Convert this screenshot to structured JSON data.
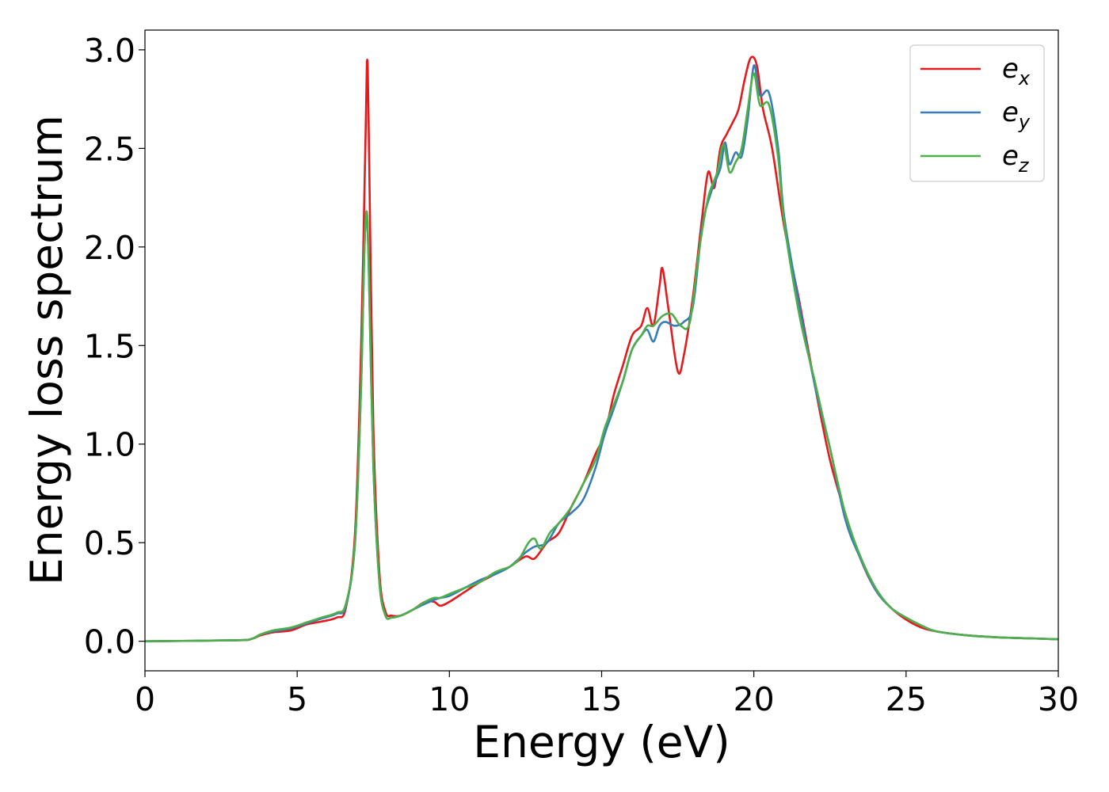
{
  "chart_data": {
    "type": "line",
    "xlabel": "Energy (eV)",
    "ylabel": "Energy loss spectrum",
    "xlim": [
      0,
      30
    ],
    "ylim": [
      -0.15,
      3.1
    ],
    "xticks": [
      "0",
      "5",
      "10",
      "15",
      "20",
      "25",
      "30"
    ],
    "yticks": [
      "0.0",
      "0.5",
      "1.0",
      "1.5",
      "2.0",
      "2.5",
      "3.0"
    ],
    "grid": false,
    "legend_position": "top-right",
    "series": [
      {
        "name": "e_x",
        "legend_base": "e",
        "legend_sub": "x",
        "color": "#e41a1c",
        "x": [
          0,
          3.0,
          3.5,
          3.8,
          4.2,
          4.8,
          5.3,
          5.8,
          6.3,
          6.6,
          6.9,
          7.1,
          7.25,
          7.3,
          7.35,
          7.5,
          7.7,
          7.9,
          8.1,
          8.4,
          8.8,
          9.2,
          9.5,
          9.7,
          10.0,
          10.5,
          11.0,
          11.5,
          12.0,
          12.5,
          12.8,
          13.2,
          13.6,
          14.0,
          14.4,
          14.8,
          15.1,
          15.4,
          15.7,
          16.0,
          16.3,
          16.5,
          16.7,
          16.9,
          17.0,
          17.2,
          17.5,
          17.7,
          18.0,
          18.3,
          18.5,
          18.7,
          18.9,
          19.1,
          19.3,
          19.5,
          19.7,
          19.9,
          20.1,
          20.3,
          20.6,
          21.0,
          21.5,
          22.0,
          22.5,
          23.0,
          23.5,
          24.0,
          24.5,
          25.0,
          25.5,
          26.0,
          27.0,
          28.0,
          29.0,
          30.0
        ],
        "y": [
          0.0,
          0.005,
          0.012,
          0.03,
          0.045,
          0.055,
          0.085,
          0.1,
          0.12,
          0.17,
          0.55,
          1.5,
          2.6,
          2.95,
          2.6,
          1.1,
          0.35,
          0.15,
          0.13,
          0.13,
          0.16,
          0.2,
          0.2,
          0.18,
          0.2,
          0.25,
          0.3,
          0.34,
          0.38,
          0.43,
          0.42,
          0.5,
          0.55,
          0.68,
          0.8,
          0.95,
          1.05,
          1.25,
          1.4,
          1.55,
          1.6,
          1.69,
          1.6,
          1.8,
          1.89,
          1.68,
          1.37,
          1.45,
          1.75,
          2.15,
          2.38,
          2.3,
          2.5,
          2.57,
          2.63,
          2.7,
          2.85,
          2.96,
          2.92,
          2.7,
          2.5,
          2.1,
          1.72,
          1.3,
          0.92,
          0.65,
          0.42,
          0.26,
          0.17,
          0.11,
          0.07,
          0.05,
          0.03,
          0.02,
          0.015,
          0.01
        ]
      },
      {
        "name": "e_y",
        "legend_base": "e",
        "legend_sub": "y",
        "color": "#377eb8",
        "x": [
          0,
          3.0,
          3.5,
          3.8,
          4.2,
          4.8,
          5.3,
          5.8,
          6.3,
          6.6,
          6.9,
          7.1,
          7.2,
          7.28,
          7.35,
          7.5,
          7.7,
          7.9,
          8.1,
          8.4,
          8.8,
          9.2,
          9.5,
          9.7,
          10.0,
          10.5,
          11.0,
          11.5,
          12.0,
          12.5,
          12.8,
          13.2,
          13.6,
          14.0,
          14.4,
          14.8,
          15.1,
          15.4,
          15.7,
          16.0,
          16.3,
          16.5,
          16.7,
          16.9,
          17.1,
          17.4,
          17.7,
          18.0,
          18.3,
          18.6,
          18.9,
          19.05,
          19.2,
          19.4,
          19.6,
          19.8,
          20.0,
          20.2,
          20.5,
          20.8,
          21.0,
          21.5,
          22.0,
          22.5,
          23.0,
          23.5,
          24.0,
          24.5,
          25.0,
          25.5,
          26.0,
          27.0,
          28.0,
          29.0,
          30.0
        ],
        "y": [
          0.0,
          0.005,
          0.012,
          0.035,
          0.05,
          0.065,
          0.09,
          0.115,
          0.14,
          0.18,
          0.5,
          1.3,
          1.95,
          2.18,
          1.9,
          0.9,
          0.3,
          0.13,
          0.12,
          0.13,
          0.16,
          0.19,
          0.21,
          0.22,
          0.23,
          0.27,
          0.31,
          0.34,
          0.38,
          0.45,
          0.48,
          0.5,
          0.6,
          0.65,
          0.72,
          0.88,
          1.05,
          1.18,
          1.32,
          1.48,
          1.55,
          1.58,
          1.52,
          1.6,
          1.62,
          1.6,
          1.62,
          1.7,
          2.1,
          2.28,
          2.4,
          2.53,
          2.42,
          2.48,
          2.46,
          2.65,
          2.92,
          2.77,
          2.78,
          2.5,
          2.15,
          1.7,
          1.3,
          0.98,
          0.62,
          0.42,
          0.26,
          0.17,
          0.12,
          0.08,
          0.05,
          0.03,
          0.02,
          0.015,
          0.01
        ]
      },
      {
        "name": "e_z",
        "legend_base": "e",
        "legend_sub": "z",
        "color": "#4daf4a",
        "x": [
          0,
          3.0,
          3.5,
          3.8,
          4.2,
          4.8,
          5.3,
          5.8,
          6.3,
          6.6,
          6.9,
          7.1,
          7.2,
          7.28,
          7.35,
          7.5,
          7.7,
          7.9,
          8.1,
          8.4,
          8.8,
          9.2,
          9.5,
          9.7,
          10.0,
          10.5,
          11.0,
          11.5,
          12.0,
          12.3,
          12.6,
          12.8,
          13.0,
          13.3,
          13.6,
          14.0,
          14.4,
          14.8,
          15.1,
          15.4,
          15.7,
          16.0,
          16.3,
          16.5,
          16.7,
          17.0,
          17.3,
          17.6,
          17.9,
          18.2,
          18.5,
          18.8,
          19.0,
          19.2,
          19.4,
          19.6,
          19.8,
          20.0,
          20.2,
          20.5,
          20.8,
          21.0,
          21.5,
          22.0,
          22.5,
          23.0,
          23.5,
          24.0,
          24.5,
          25.0,
          25.5,
          26.0,
          27.0,
          28.0,
          29.0,
          30.0
        ],
        "y": [
          0.0,
          0.005,
          0.012,
          0.035,
          0.055,
          0.07,
          0.095,
          0.12,
          0.145,
          0.19,
          0.5,
          1.3,
          1.95,
          2.18,
          1.9,
          0.9,
          0.3,
          0.13,
          0.12,
          0.13,
          0.16,
          0.2,
          0.22,
          0.22,
          0.24,
          0.27,
          0.3,
          0.35,
          0.38,
          0.42,
          0.5,
          0.52,
          0.47,
          0.55,
          0.6,
          0.68,
          0.8,
          0.92,
          1.08,
          1.2,
          1.32,
          1.48,
          1.55,
          1.6,
          1.6,
          1.65,
          1.66,
          1.6,
          1.62,
          1.98,
          2.25,
          2.38,
          2.52,
          2.38,
          2.43,
          2.5,
          2.7,
          2.88,
          2.72,
          2.72,
          2.45,
          2.12,
          1.65,
          1.32,
          0.98,
          0.65,
          0.43,
          0.27,
          0.17,
          0.12,
          0.08,
          0.05,
          0.03,
          0.02,
          0.015,
          0.01
        ]
      }
    ]
  }
}
